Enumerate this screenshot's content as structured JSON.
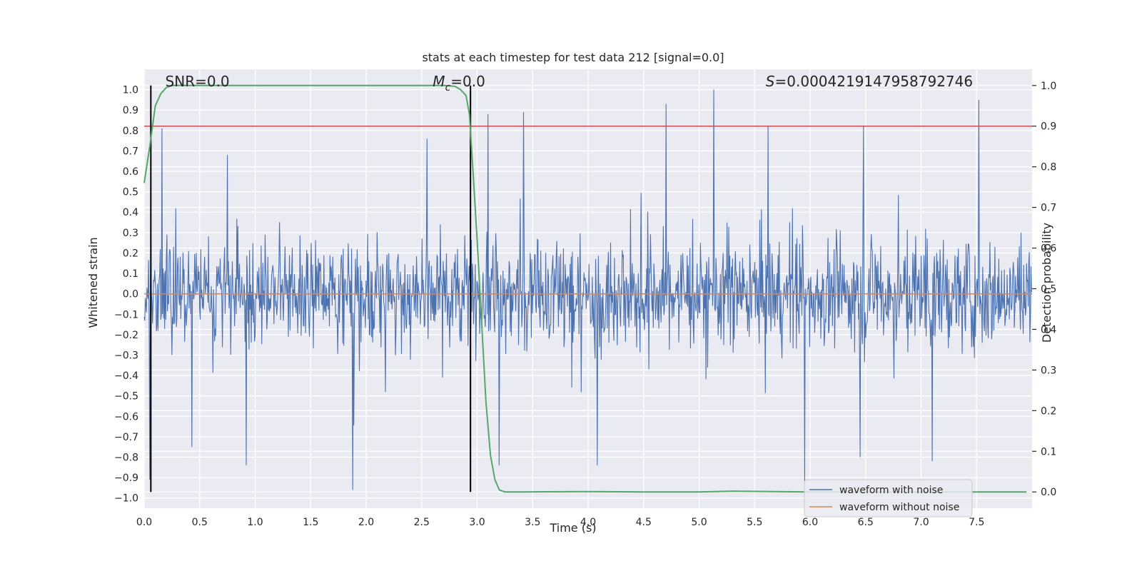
{
  "chart_data": {
    "type": "line",
    "title": "stats at each timestep for test data 212 [signal=0.0]",
    "xlabel": "Time (s)",
    "ylabel": "Whitened strain",
    "ylabel_right": "Detection probability",
    "xlim": [
      0.0,
      8.0
    ],
    "ylim": [
      -1.05,
      1.1
    ],
    "ylim_right": [
      -0.04,
      1.04
    ],
    "xticks": [
      0.0,
      0.5,
      1.0,
      1.5,
      2.0,
      2.5,
      3.0,
      3.5,
      4.0,
      4.5,
      5.0,
      5.5,
      6.0,
      6.5,
      7.0,
      7.5
    ],
    "xtick_labels": [
      "0.0",
      "0.5",
      "1.0",
      "1.5",
      "2.0",
      "2.5",
      "3.0",
      "3.5",
      "4.0",
      "4.5",
      "5.0",
      "5.5",
      "6.0",
      "6.5",
      "7.0",
      "7.5"
    ],
    "yticks": [
      1.0,
      0.9,
      0.8,
      0.7,
      0.6,
      0.5,
      0.4,
      0.3,
      0.2,
      0.1,
      0.0,
      -0.1,
      -0.2,
      -0.3,
      -0.4,
      -0.5,
      -0.6,
      -0.7,
      -0.8,
      -0.9,
      -1.0
    ],
    "ytick_labels": [
      "1.0",
      "0.9",
      "0.8",
      "0.7",
      "0.6",
      "0.5",
      "0.4",
      "0.3",
      "0.2",
      "0.1",
      "0.0",
      "−0.1",
      "−0.2",
      "−0.3",
      "−0.4",
      "−0.5",
      "−0.6",
      "−0.7",
      "−0.8",
      "−0.9",
      "−1.0"
    ],
    "yticks_right": [
      1.0,
      0.9,
      0.8,
      0.7,
      0.6,
      0.5,
      0.4,
      0.3,
      0.2,
      0.1,
      0.0
    ],
    "ytick_labels_right": [
      "1.0",
      "0.9",
      "0.8",
      "0.7",
      "0.6",
      "0.5",
      "0.4",
      "0.3",
      "0.2",
      "0.1",
      "0.0"
    ],
    "grid": true,
    "series": [
      {
        "name": "waveform with noise",
        "color": "#4c72b0",
        "description": "dense noise trace spanning 0-8 s, mostly within ±0.4 with spikes to ±1.0",
        "noise_amplitude": 0.35,
        "notable_peaks": [
          {
            "x": 0.16,
            "y": 0.81
          },
          {
            "x": 0.75,
            "y": 0.68
          },
          {
            "x": 2.55,
            "y": 0.76
          },
          {
            "x": 3.1,
            "y": 0.88
          },
          {
            "x": 3.42,
            "y": 0.89
          },
          {
            "x": 4.7,
            "y": 0.93
          },
          {
            "x": 5.13,
            "y": 1.0
          },
          {
            "x": 5.62,
            "y": 0.82
          },
          {
            "x": 6.48,
            "y": 0.82
          },
          {
            "x": 7.52,
            "y": 0.95
          }
        ],
        "notable_troughs": [
          {
            "x": 0.05,
            "y": -0.91
          },
          {
            "x": 0.43,
            "y": -0.75
          },
          {
            "x": 0.92,
            "y": -0.84
          },
          {
            "x": 1.88,
            "y": -0.96
          },
          {
            "x": 3.2,
            "y": -0.84
          },
          {
            "x": 4.08,
            "y": -0.84
          },
          {
            "x": 5.95,
            "y": -0.93
          },
          {
            "x": 6.45,
            "y": -0.8
          },
          {
            "x": 7.1,
            "y": -0.82
          }
        ]
      },
      {
        "name": "waveform without noise",
        "color": "#dd8452",
        "x": [
          0.0,
          8.0
        ],
        "y": [
          0.0,
          0.0
        ]
      },
      {
        "name": "detection probability",
        "color": "#55a868",
        "axis": "right",
        "x": [
          0.0,
          0.05,
          0.1,
          0.15,
          0.2,
          0.25,
          0.3,
          0.35,
          0.4,
          0.5,
          1.0,
          2.0,
          2.5,
          2.7,
          2.8,
          2.85,
          2.9,
          2.93,
          2.96,
          3.0,
          3.04,
          3.08,
          3.12,
          3.16,
          3.2,
          3.25,
          3.3,
          3.4,
          4.0,
          4.5,
          5.0,
          5.3,
          6.0,
          7.0,
          7.95
        ],
        "y": [
          0.76,
          0.85,
          0.95,
          0.98,
          0.995,
          1.0,
          1.0,
          1.0,
          1.0,
          1.0,
          1.0,
          1.0,
          1.0,
          1.0,
          0.998,
          0.99,
          0.975,
          0.93,
          0.8,
          0.62,
          0.42,
          0.22,
          0.09,
          0.03,
          0.005,
          0.0,
          0.0,
          0.0,
          0.001,
          0.0,
          0.0,
          0.002,
          0.0,
          0.0,
          0.0
        ]
      }
    ],
    "threshold": {
      "value": 0.9,
      "axis": "right",
      "color": "#c44e52"
    },
    "vertical_lines": [
      {
        "x": 0.06,
        "color": "#000000"
      },
      {
        "x": 2.94,
        "color": "#000000"
      }
    ],
    "annotations": [
      {
        "text": "SNR=0.0",
        "x": 0.19
      },
      {
        "text_prefix": "M",
        "subscript": "c",
        "text_suffix": "=0.0",
        "x": 2.6
      },
      {
        "text_prefix": "S",
        "text_suffix": "=0.0004219147958792746",
        "x": 5.6
      }
    ],
    "legend": {
      "placement": "lower-right",
      "entries": [
        {
          "label": "waveform with noise",
          "color": "#4c72b0"
        },
        {
          "label": "waveform without noise",
          "color": "#dd8452"
        }
      ]
    },
    "colors": {
      "plot_background": "#eaeaf2",
      "grid": "#ffffff"
    }
  }
}
